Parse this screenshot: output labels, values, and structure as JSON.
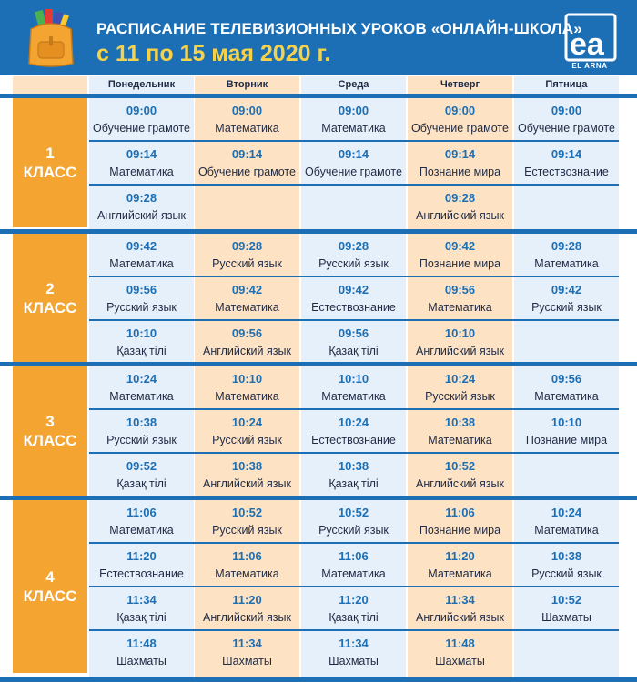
{
  "header": {
    "title": "РАСПИСАНИЕ ТЕЛЕВИЗИОННЫХ УРОКОВ «ОНЛАЙН-ШКОЛА»",
    "dates": "с 11 по 15 мая 2020 г.",
    "logo_text": "EL ARNA",
    "logo_letters": "ea",
    "backpack_icon": "backpack-icon"
  },
  "days": [
    "Понедельник",
    "Вторник",
    "Среда",
    "Четверг",
    "Пятница"
  ],
  "colors": {
    "header": "#1c6fb5",
    "accent_yellow": "#f5d24a",
    "class_orange": "#f4a431",
    "col_blue": "#e6f0fa",
    "col_peach": "#fde3c4",
    "time_blue": "#1c6fb5"
  },
  "classes": [
    {
      "label": "1\nКЛАСС",
      "rows": [
        [
          {
            "time": "09:00",
            "subject": "Обучение грамоте"
          },
          {
            "time": "09:00",
            "subject": "Математика"
          },
          {
            "time": "09:00",
            "subject": "Математика"
          },
          {
            "time": "09:00",
            "subject": "Обучение грамоте"
          },
          {
            "time": "09:00",
            "subject": "Обучение грамоте"
          }
        ],
        [
          {
            "time": "09:14",
            "subject": "Математика"
          },
          {
            "time": "09:14",
            "subject": "Обучение грамоте"
          },
          {
            "time": "09:14",
            "subject": "Обучение грамоте"
          },
          {
            "time": "09:14",
            "subject": "Познание мира"
          },
          {
            "time": "09:14",
            "subject": "Естествознание"
          }
        ],
        [
          {
            "time": "09:28",
            "subject": "Английский язык"
          },
          {
            "time": "",
            "subject": ""
          },
          {
            "time": "",
            "subject": ""
          },
          {
            "time": "09:28",
            "subject": "Английский язык"
          },
          {
            "time": "",
            "subject": ""
          }
        ]
      ]
    },
    {
      "label": "2\nКЛАСС",
      "rows": [
        [
          {
            "time": "09:42",
            "subject": "Математика"
          },
          {
            "time": "09:28",
            "subject": "Русский язык"
          },
          {
            "time": "09:28",
            "subject": "Русский язык"
          },
          {
            "time": "09:42",
            "subject": "Познание мира"
          },
          {
            "time": "09:28",
            "subject": "Математика"
          }
        ],
        [
          {
            "time": "09:56",
            "subject": "Русский язык"
          },
          {
            "time": "09:42",
            "subject": "Математика"
          },
          {
            "time": "09:42",
            "subject": "Естествознание"
          },
          {
            "time": "09:56",
            "subject": "Математика"
          },
          {
            "time": "09:42",
            "subject": "Русский язык"
          }
        ],
        [
          {
            "time": "10:10",
            "subject": "Қазақ тілі"
          },
          {
            "time": "09:56",
            "subject": "Английский язык"
          },
          {
            "time": "09:56",
            "subject": "Қазақ тілі"
          },
          {
            "time": "10:10",
            "subject": "Английский язык"
          },
          {
            "time": "",
            "subject": ""
          }
        ]
      ]
    },
    {
      "label": "3\nКЛАСС",
      "rows": [
        [
          {
            "time": "10:24",
            "subject": "Математика"
          },
          {
            "time": "10:10",
            "subject": "Математика"
          },
          {
            "time": "10:10",
            "subject": "Математика"
          },
          {
            "time": "10:24",
            "subject": "Русский язык"
          },
          {
            "time": "09:56",
            "subject": "Математика"
          }
        ],
        [
          {
            "time": "10:38",
            "subject": "Русский язык"
          },
          {
            "time": "10:24",
            "subject": "Русский язык"
          },
          {
            "time": "10:24",
            "subject": "Естествознание"
          },
          {
            "time": "10:38",
            "subject": "Математика"
          },
          {
            "time": "10:10",
            "subject": "Познание мира"
          }
        ],
        [
          {
            "time": "09:52",
            "subject": "Қазақ тілі"
          },
          {
            "time": "10:38",
            "subject": "Английский язык"
          },
          {
            "time": "10:38",
            "subject": "Қазақ тілі"
          },
          {
            "time": "10:52",
            "subject": "Английский язык"
          },
          {
            "time": "",
            "subject": ""
          }
        ]
      ]
    },
    {
      "label": "4\nКЛАСС",
      "rows": [
        [
          {
            "time": "11:06",
            "subject": "Математика"
          },
          {
            "time": "10:52",
            "subject": "Русский язык"
          },
          {
            "time": "10:52",
            "subject": "Русский язык"
          },
          {
            "time": "11:06",
            "subject": "Познание мира"
          },
          {
            "time": "10:24",
            "subject": "Математика"
          }
        ],
        [
          {
            "time": "11:20",
            "subject": "Естествознание"
          },
          {
            "time": "11:06",
            "subject": "Математика"
          },
          {
            "time": "11:06",
            "subject": "Математика"
          },
          {
            "time": "11:20",
            "subject": "Математика"
          },
          {
            "time": "10:38",
            "subject": "Русский язык"
          }
        ],
        [
          {
            "time": "11:34",
            "subject": "Қазақ тілі"
          },
          {
            "time": "11:20",
            "subject": "Английский язык"
          },
          {
            "time": "11:20",
            "subject": "Қазақ тілі"
          },
          {
            "time": "11:34",
            "subject": "Английский язык"
          },
          {
            "time": "10:52",
            "subject": "Шахматы"
          }
        ],
        [
          {
            "time": "11:48",
            "subject": "Шахматы"
          },
          {
            "time": "11:34",
            "subject": "Шахматы"
          },
          {
            "time": "11:34",
            "subject": "Шахматы"
          },
          {
            "time": "11:48",
            "subject": "Шахматы"
          },
          {
            "time": "",
            "subject": ""
          }
        ]
      ]
    }
  ]
}
